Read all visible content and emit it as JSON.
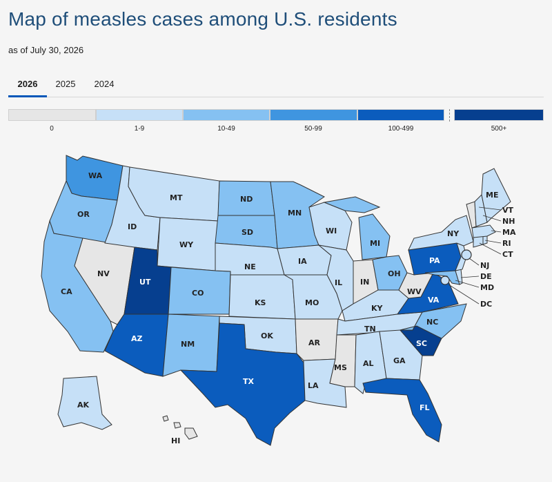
{
  "header": {
    "title": "Map of measles cases among U.S. residents",
    "subtitle": "as of July 30, 2026"
  },
  "tabs": [
    {
      "label": "2026",
      "active": true
    },
    {
      "label": "2025",
      "active": false
    },
    {
      "label": "2024",
      "active": false
    }
  ],
  "legend": [
    {
      "label": "0",
      "color": "#e6e6e6"
    },
    {
      "label": "1-9",
      "color": "#c6e0f7"
    },
    {
      "label": "10-49",
      "color": "#85c1f2"
    },
    {
      "label": "50-99",
      "color": "#3f95e0"
    },
    {
      "label": "100-499",
      "color": "#0b5cbd"
    },
    {
      "label": "500+",
      "color": "#063f8f"
    }
  ],
  "states": {
    "WA": {
      "label": "WA",
      "bin": 3
    },
    "OR": {
      "label": "OR",
      "bin": 2
    },
    "CA": {
      "label": "CA",
      "bin": 2
    },
    "NV": {
      "label": "NV",
      "bin": 0
    },
    "ID": {
      "label": "ID",
      "bin": 1
    },
    "MT": {
      "label": "MT",
      "bin": 1
    },
    "WY": {
      "label": "WY",
      "bin": 1
    },
    "UT": {
      "label": "UT",
      "bin": 5
    },
    "AZ": {
      "label": "AZ",
      "bin": 4
    },
    "CO": {
      "label": "CO",
      "bin": 2
    },
    "NM": {
      "label": "NM",
      "bin": 2
    },
    "ND": {
      "label": "ND",
      "bin": 2
    },
    "SD": {
      "label": "SD",
      "bin": 2
    },
    "NE": {
      "label": "NE",
      "bin": 1
    },
    "KS": {
      "label": "KS",
      "bin": 1
    },
    "OK": {
      "label": "OK",
      "bin": 1
    },
    "TX": {
      "label": "TX",
      "bin": 4
    },
    "MN": {
      "label": "MN",
      "bin": 2
    },
    "IA": {
      "label": "IA",
      "bin": 1
    },
    "MO": {
      "label": "MO",
      "bin": 1
    },
    "AR": {
      "label": "AR",
      "bin": 0
    },
    "LA": {
      "label": "LA",
      "bin": 1
    },
    "WI": {
      "label": "WI",
      "bin": 1
    },
    "IL": {
      "label": "IL",
      "bin": 1
    },
    "MI": {
      "label": "MI",
      "bin": 2
    },
    "IN": {
      "label": "IN",
      "bin": 0
    },
    "OH": {
      "label": "OH",
      "bin": 2
    },
    "KY": {
      "label": "KY",
      "bin": 1
    },
    "TN": {
      "label": "TN",
      "bin": 1
    },
    "MS": {
      "label": "MS",
      "bin": 0
    },
    "AL": {
      "label": "AL",
      "bin": 1
    },
    "GA": {
      "label": "GA",
      "bin": 1
    },
    "FL": {
      "label": "FL",
      "bin": 4
    },
    "SC": {
      "label": "SC",
      "bin": 5
    },
    "NC": {
      "label": "NC",
      "bin": 2
    },
    "VA": {
      "label": "VA",
      "bin": 4
    },
    "WV": {
      "label": "WV",
      "bin": 0
    },
    "PA": {
      "label": "PA",
      "bin": 4
    },
    "NY": {
      "label": "NY",
      "bin": 1
    },
    "NJ": {
      "label": "NJ",
      "bin": 1
    },
    "DE": {
      "label": "DE",
      "bin": 1
    },
    "MD": {
      "label": "MD",
      "bin": 2
    },
    "DC": {
      "label": "DC",
      "bin": 1
    },
    "CT": {
      "label": "CT",
      "bin": 1
    },
    "RI": {
      "label": "RI",
      "bin": 1
    },
    "MA": {
      "label": "MA",
      "bin": 1
    },
    "VT": {
      "label": "VT",
      "bin": 0
    },
    "NH": {
      "label": "NH",
      "bin": 1
    },
    "ME": {
      "label": "ME",
      "bin": 1
    },
    "AK": {
      "label": "AK",
      "bin": 1
    },
    "HI": {
      "label": "HI",
      "bin": 0
    }
  }
}
